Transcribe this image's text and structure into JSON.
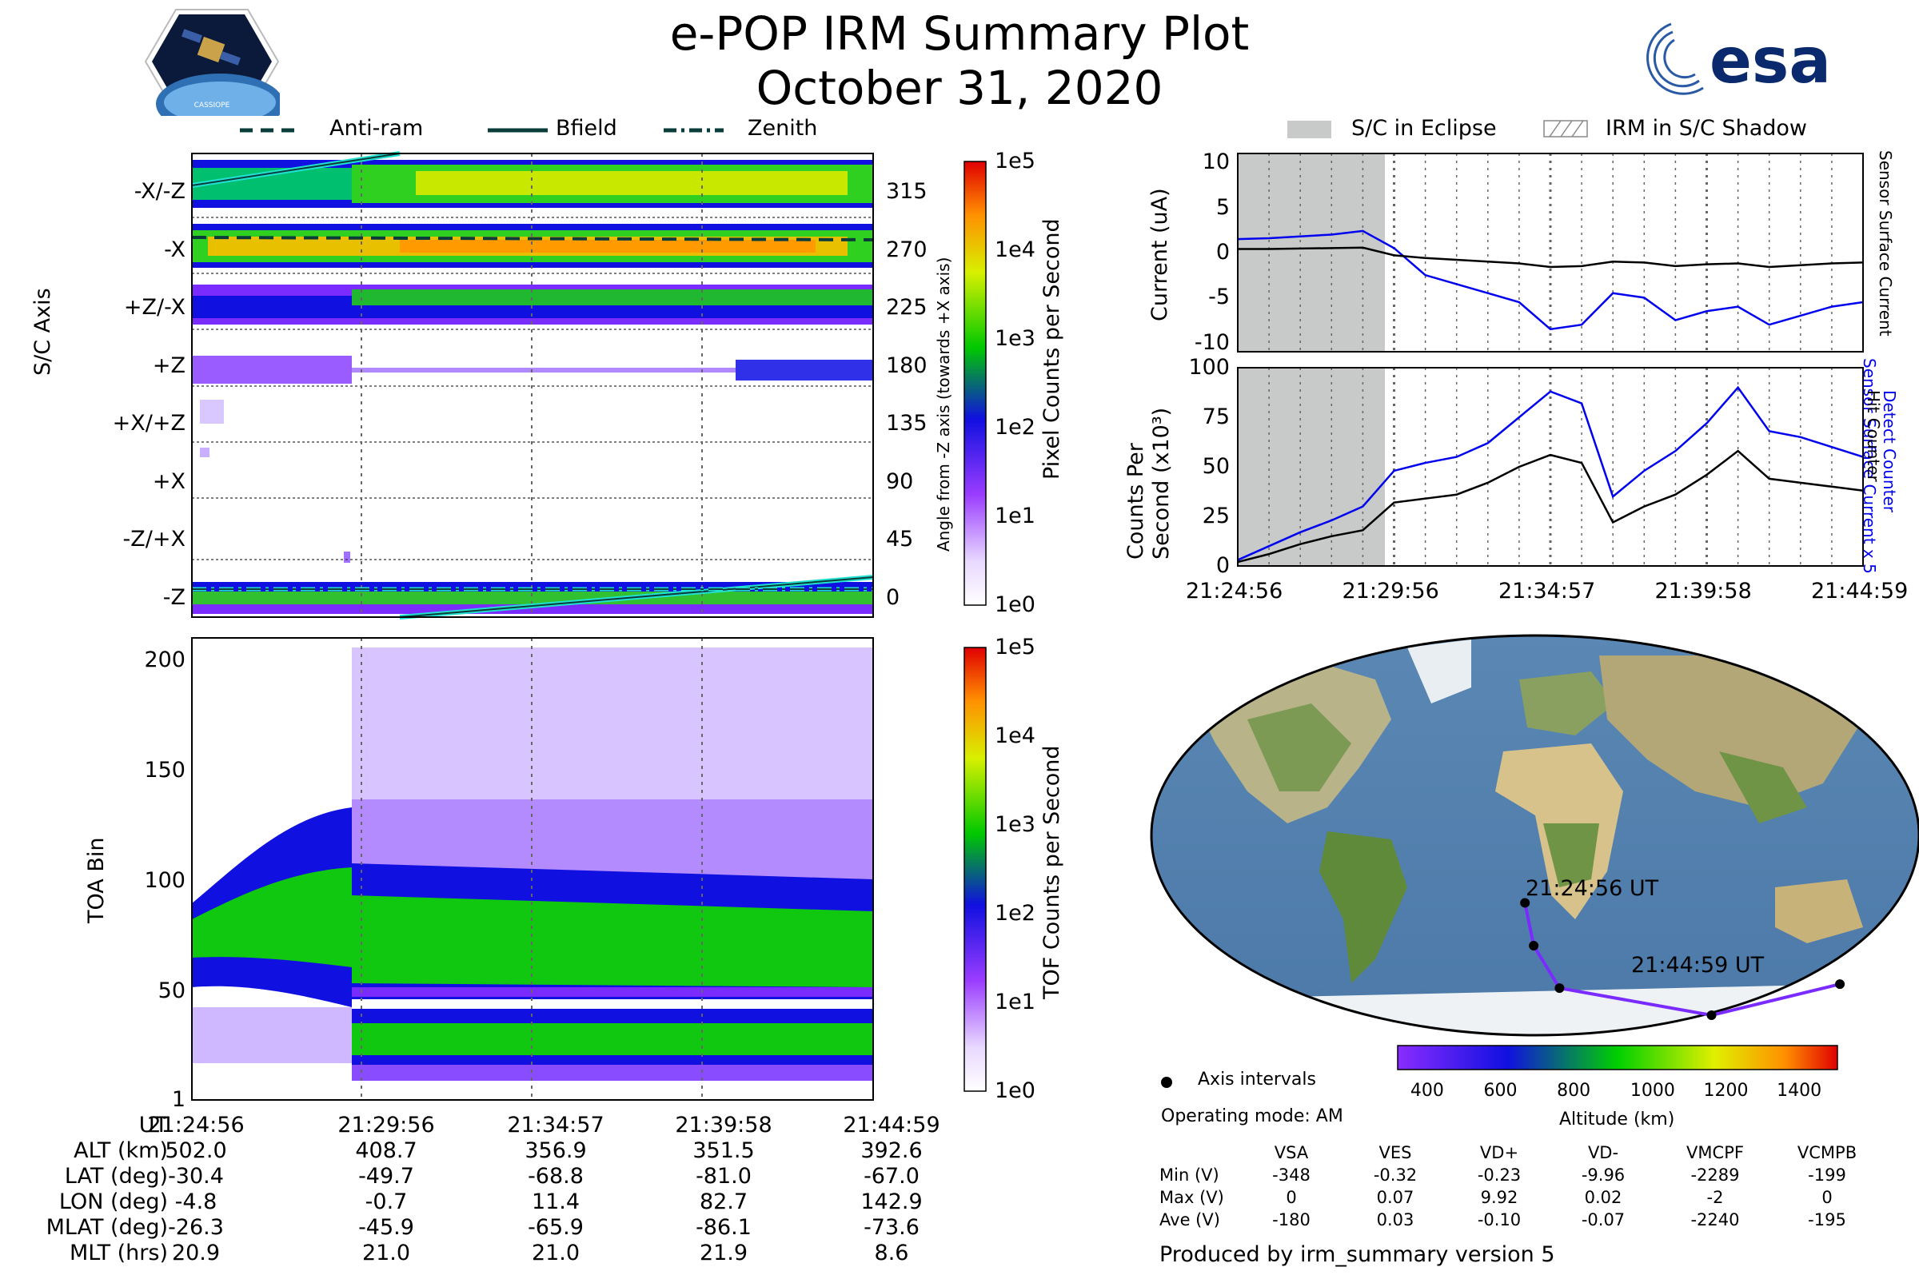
{
  "header": {
    "title": "e-POP IRM Summary Plot",
    "date": "October 31, 2020",
    "logo_left": "CASSIOPE",
    "logo_right": "esa"
  },
  "legend_top_left": [
    {
      "label": "Anti-ram",
      "style": "dashed"
    },
    {
      "label": "Bfield",
      "style": "solid"
    },
    {
      "label": "Zenith",
      "style": "dashdot"
    }
  ],
  "legend_top_right": [
    {
      "label": "S/C in Eclipse"
    },
    {
      "label": "IRM in S/C Shadow"
    }
  ],
  "time_ticks": [
    "21:24:56",
    "21:29:56",
    "21:34:57",
    "21:39:58",
    "21:44:59"
  ],
  "chart_data": [
    {
      "id": "sc-axis-panel",
      "type": "heatmap",
      "ylabel": "S/C Axis",
      "ylabel_right": "Angle from -Z axis (towards +X axis)",
      "y_left_ticks": [
        "-X/-Z",
        "-X",
        "+Z/-X",
        "+Z",
        "+X/+Z",
        "+X",
        "-Z/+X",
        "-Z"
      ],
      "y_right_ticks": [
        "315",
        "270",
        "225",
        "180",
        "135",
        "90",
        "45",
        "0"
      ],
      "ylim": [
        -15,
        345
      ],
      "colorbar": {
        "label": "Pixel Counts per Second",
        "ticks": [
          "1e5",
          "1e4",
          "1e3",
          "1e2",
          "1e1",
          "1e0"
        ]
      },
      "lines": [
        {
          "name": "Anti-ram",
          "angle_start": 270,
          "angle_end": 270
        },
        {
          "name": "Bfield",
          "angle_start": 335,
          "angle_end": 10
        },
        {
          "name": "Zenith",
          "angle_start": 0,
          "angle_end": 0
        }
      ]
    },
    {
      "id": "toa-panel",
      "type": "heatmap",
      "ylabel": "TOA Bin",
      "y_ticks": [
        "1",
        "50",
        "100",
        "150",
        "200"
      ],
      "ylim": [
        1,
        210
      ],
      "colorbar": {
        "label": "TOF Counts per Second",
        "ticks": [
          "1e5",
          "1e4",
          "1e3",
          "1e2",
          "1e1",
          "1e0"
        ]
      }
    },
    {
      "id": "current-panel",
      "type": "line",
      "ylabel": "Current (uA)",
      "ylabel_right": [
        "Sensor Surface Current x 5",
        "Sensor Surface Current"
      ],
      "y_ticks": [
        "10",
        "5",
        "0",
        "-5",
        "-10"
      ],
      "ylim": [
        -11,
        11
      ],
      "x": [
        0,
        1,
        2,
        3,
        4,
        5,
        6,
        7,
        8,
        9,
        10,
        11,
        12,
        13,
        14,
        15,
        16,
        17,
        18,
        19,
        20
      ],
      "series": [
        {
          "name": "Sensor Surface Current x 5",
          "color": "#0000ee",
          "values": [
            1.5,
            1.6,
            1.8,
            2.0,
            2.4,
            0.5,
            -2.5,
            -3.5,
            -4.5,
            -5.5,
            -8.5,
            -8.0,
            -4.5,
            -5.0,
            -7.5,
            -6.5,
            -6.0,
            -8.0,
            -7.0,
            -6.0,
            -5.5
          ]
        },
        {
          "name": "Sensor Surface Current",
          "color": "#000000",
          "values": [
            0.4,
            0.4,
            0.45,
            0.5,
            0.55,
            -0.3,
            -0.6,
            -0.8,
            -1.0,
            -1.2,
            -1.6,
            -1.5,
            -1.0,
            -1.1,
            -1.5,
            -1.3,
            -1.2,
            -1.6,
            -1.4,
            -1.2,
            -1.1
          ]
        }
      ],
      "eclipse_range": [
        0,
        4.7
      ]
    },
    {
      "id": "counts-panel",
      "type": "line",
      "ylabel": "Counts Per Second (x10³)",
      "ylabel_right": [
        "Detect Counter",
        "Hit Counter"
      ],
      "y_ticks": [
        "100",
        "75",
        "50",
        "25",
        "0"
      ],
      "ylim": [
        0,
        100
      ],
      "x": [
        0,
        1,
        2,
        3,
        4,
        5,
        6,
        7,
        8,
        9,
        10,
        11,
        12,
        13,
        14,
        15,
        16,
        17,
        18,
        19,
        20
      ],
      "series": [
        {
          "name": "Detect Counter",
          "color": "#0000ee",
          "values": [
            3,
            10,
            17,
            23,
            30,
            48,
            52,
            55,
            62,
            75,
            88,
            82,
            35,
            48,
            58,
            72,
            90,
            68,
            65,
            60,
            55
          ]
        },
        {
          "name": "Hit Counter",
          "color": "#000000",
          "values": [
            2,
            6,
            11,
            15,
            18,
            32,
            34,
            36,
            42,
            50,
            56,
            52,
            22,
            30,
            36,
            46,
            58,
            44,
            42,
            40,
            38
          ]
        }
      ],
      "eclipse_range": [
        0,
        4.7
      ]
    },
    {
      "id": "orbit-map",
      "type": "scatter",
      "start_label": "21:24:56 UT",
      "end_label": "21:44:59 UT",
      "track_lon": [
        -4.8,
        -0.7,
        11.4,
        82.7,
        142.9
      ],
      "track_lat": [
        -30.4,
        -49.7,
        -68.8,
        -81.0,
        -67.0
      ],
      "colorbar": {
        "label": "Altitude (km)",
        "ticks": [
          "400",
          "600",
          "800",
          "1000",
          "1200",
          "1400"
        ]
      }
    }
  ],
  "orbit_table": {
    "headers": [
      "UT",
      "21:24:56",
      "21:29:56",
      "21:34:57",
      "21:39:58",
      "21:44:59"
    ],
    "rows": [
      {
        "label": "ALT (km)",
        "values": [
          "502.0",
          "408.7",
          "356.9",
          "351.5",
          "392.6"
        ]
      },
      {
        "label": "LAT (deg)",
        "values": [
          "-30.4",
          "-49.7",
          "-68.8",
          "-81.0",
          "-67.0"
        ]
      },
      {
        "label": "LON (deg)",
        "values": [
          "-4.8",
          "-0.7",
          "11.4",
          "82.7",
          "142.9"
        ]
      },
      {
        "label": "MLAT (deg)",
        "values": [
          "-26.3",
          "-45.9",
          "-65.9",
          "-86.1",
          "-73.6"
        ]
      },
      {
        "label": "MLT (hrs)",
        "values": [
          "20.9",
          "21.0",
          "21.0",
          "21.9",
          "8.6"
        ]
      }
    ]
  },
  "info": {
    "axis_intervals": "Axis intervals",
    "operating_mode": "Operating mode: AM",
    "produced_by": "Produced by irm_summary version 5"
  },
  "voltage_table": {
    "headers": [
      "",
      "VSA",
      "VES",
      "VD+",
      "VD-",
      "VMCPF",
      "VCMPB"
    ],
    "rows": [
      {
        "label": "Min (V)",
        "values": [
          "-348",
          "-0.32",
          "-0.23",
          "-9.96",
          "-2289",
          "-199"
        ]
      },
      {
        "label": "Max (V)",
        "values": [
          "0",
          "0.07",
          "9.92",
          "0.02",
          "-2",
          "0"
        ]
      },
      {
        "label": "Ave (V)",
        "values": [
          "-180",
          "0.03",
          "-0.10",
          "-0.07",
          "-2240",
          "-195"
        ]
      }
    ]
  }
}
